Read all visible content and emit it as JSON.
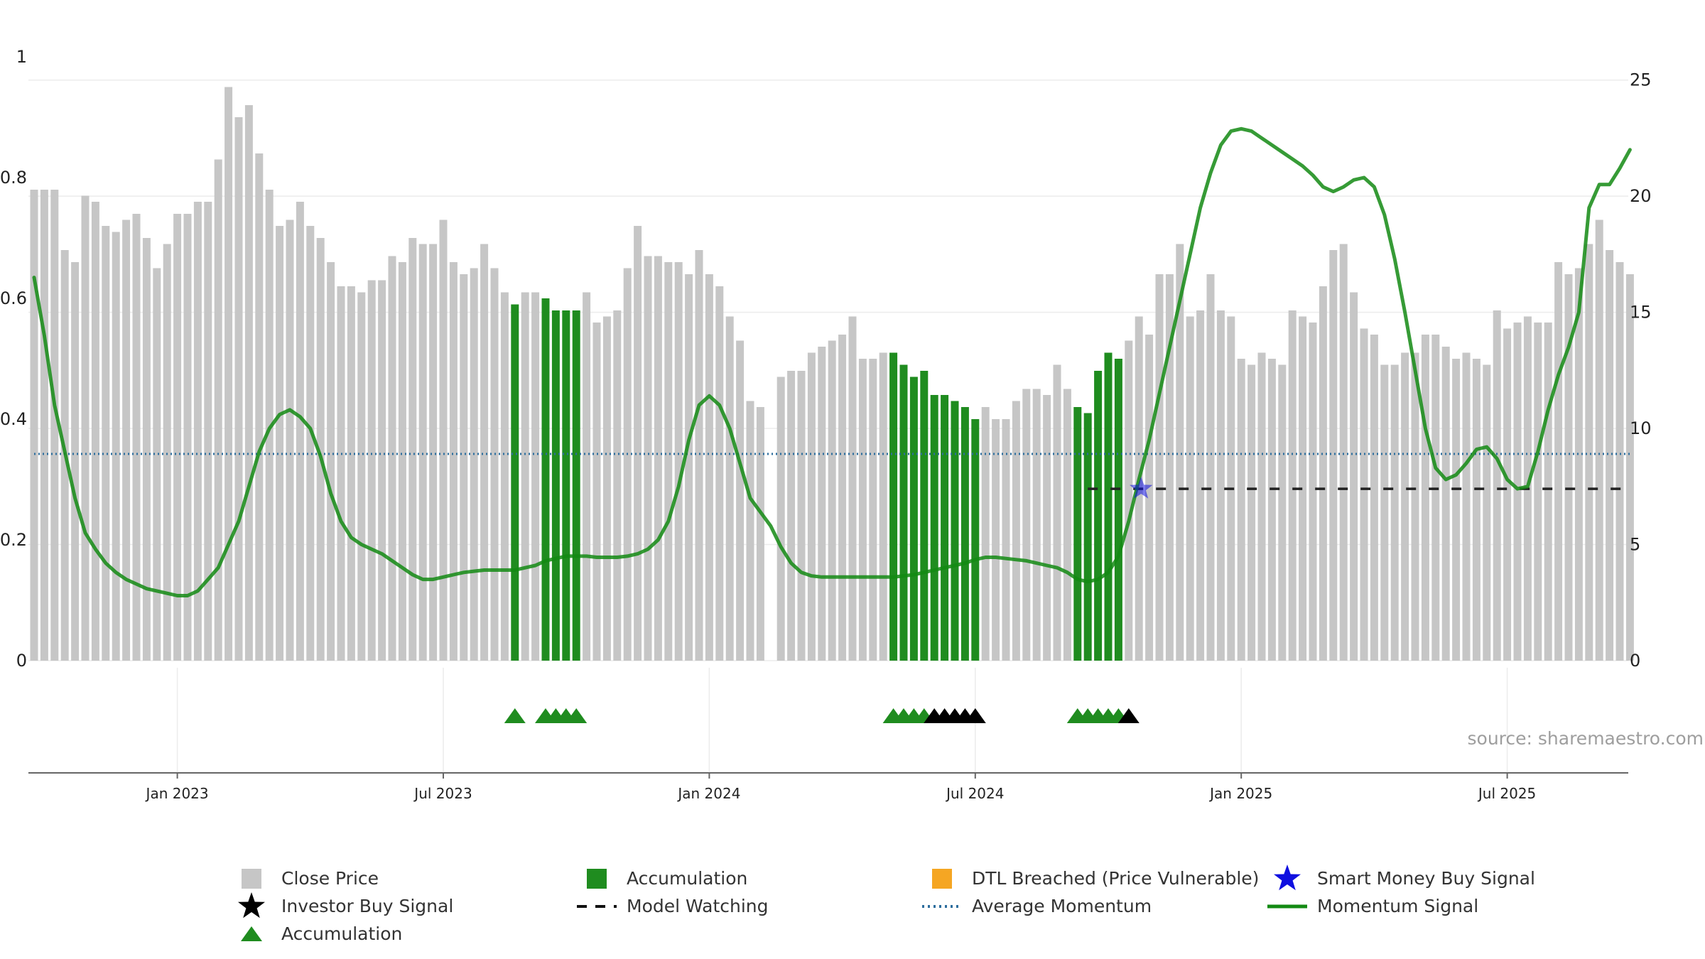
{
  "chart_data": {
    "type": "bar",
    "weeks": 157,
    "x_ticks": [
      "Jan 2023",
      "Jul 2023",
      "Jan 2024",
      "Jul 2024",
      "Jan 2025",
      "Jul 2025"
    ],
    "x_tick_weeks": [
      14,
      40,
      66,
      92,
      118,
      144
    ],
    "left_axis": {
      "ylim": [
        0,
        1
      ],
      "ticks": [
        "0",
        "0.2",
        "0.4",
        "0.6",
        "0.8",
        "1"
      ]
    },
    "right_axis": {
      "ylim": [
        0,
        26
      ],
      "ticks": [
        "0",
        "5",
        "10",
        "15",
        "20",
        "25"
      ]
    },
    "grid": true,
    "close_price": [
      0.78,
      0.78,
      0.78,
      0.68,
      0.66,
      0.77,
      0.76,
      0.72,
      0.71,
      0.73,
      0.74,
      0.7,
      0.65,
      0.69,
      0.74,
      0.74,
      0.76,
      0.76,
      0.83,
      0.95,
      0.9,
      0.92,
      0.84,
      0.78,
      0.72,
      0.73,
      0.76,
      0.72,
      0.7,
      0.66,
      0.62,
      0.62,
      0.61,
      0.63,
      0.63,
      0.67,
      0.66,
      0.7,
      0.69,
      0.69,
      0.73,
      0.66,
      0.64,
      0.65,
      0.69,
      0.65,
      0.61,
      0.59,
      0.61,
      0.61,
      0.6,
      0.58,
      0.58,
      0.58,
      0.61,
      0.56,
      0.57,
      0.58,
      0.65,
      0.72,
      0.67,
      0.67,
      0.66,
      0.66,
      0.64,
      0.68,
      0.64,
      0.62,
      0.57,
      0.53,
      0.43,
      0.42,
      null,
      0.47,
      0.48,
      0.48,
      0.51,
      0.52,
      0.53,
      0.54,
      0.57,
      0.5,
      0.5,
      0.51,
      0.51,
      0.49,
      0.47,
      0.48,
      0.44,
      0.44,
      0.43,
      0.42,
      0.4,
      0.42,
      0.4,
      0.4,
      0.43,
      0.45,
      0.45,
      0.44,
      0.49,
      0.45,
      0.42,
      0.41,
      0.48,
      0.51,
      0.5,
      0.53,
      0.57,
      0.54,
      0.64,
      0.64,
      0.69,
      0.57,
      0.58,
      0.64,
      0.58,
      0.57,
      0.5,
      0.49,
      0.51,
      0.5,
      0.49,
      0.58,
      0.57,
      0.56,
      0.62,
      0.68,
      0.69,
      0.61,
      0.55,
      0.54,
      0.49,
      0.49,
      0.51,
      0.51,
      0.54,
      0.54,
      0.52,
      0.5,
      0.51,
      0.5,
      0.49,
      0.58,
      0.55,
      0.56,
      0.57,
      0.56,
      0.56,
      0.66,
      0.64,
      0.65,
      0.69,
      0.73,
      0.68,
      0.66,
      0.64
    ],
    "accumulation_bar_weeks": [
      47,
      50,
      51,
      52,
      53,
      84,
      85,
      86,
      87,
      88,
      89,
      90,
      91,
      92,
      102,
      103,
      104,
      105,
      106
    ],
    "momentum_signal": [
      16.5,
      14,
      11,
      9,
      7,
      5.5,
      4.8,
      4.2,
      3.8,
      3.5,
      3.3,
      3.1,
      3.0,
      2.9,
      2.8,
      2.8,
      3.0,
      3.5,
      4.0,
      5.0,
      6.0,
      7.5,
      9.0,
      10.0,
      10.6,
      10.8,
      10.5,
      10.0,
      8.8,
      7.2,
      6.0,
      5.3,
      5.0,
      4.8,
      4.6,
      4.3,
      4.0,
      3.7,
      3.5,
      3.5,
      3.6,
      3.7,
      3.8,
      3.85,
      3.9,
      3.9,
      3.9,
      3.9,
      4.0,
      4.1,
      4.3,
      4.4,
      4.5,
      4.5,
      4.5,
      4.45,
      4.45,
      4.45,
      4.5,
      4.6,
      4.8,
      5.2,
      6.0,
      7.5,
      9.5,
      11.0,
      11.4,
      11.0,
      10.0,
      8.5,
      7.0,
      6.4,
      5.8,
      4.9,
      4.2,
      3.8,
      3.65,
      3.6,
      3.6,
      3.6,
      3.6,
      3.6,
      3.6,
      3.6,
      3.6,
      3.65,
      3.7,
      3.8,
      3.9,
      4.0,
      4.1,
      4.2,
      4.35,
      4.45,
      4.45,
      4.4,
      4.35,
      4.3,
      4.2,
      4.1,
      4.0,
      3.8,
      3.5,
      3.4,
      3.5,
      3.8,
      4.5,
      6.0,
      7.8,
      9.5,
      11.5,
      13.5,
      15.5,
      17.5,
      19.5,
      21.0,
      22.2,
      22.8,
      22.9,
      22.8,
      22.5,
      22.2,
      21.9,
      21.6,
      21.3,
      20.9,
      20.4,
      20.2,
      20.4,
      20.7,
      20.8,
      20.4,
      19.2,
      17.3,
      15.0,
      12.5,
      10.0,
      8.3,
      7.8,
      8.0,
      8.5,
      9.1,
      9.2,
      8.7,
      7.8,
      7.4,
      7.5,
      9.0,
      10.8,
      12.3,
      13.5,
      15.0,
      19.5,
      20.5,
      20.5,
      21.2,
      22.0
    ],
    "average_momentum": 8.9,
    "model_watching": {
      "from_week": 103,
      "to_week": 156,
      "value": 7.4
    },
    "smart_money_buy_signal": {
      "week": 108,
      "value": 7.4
    },
    "accumulation_marker_weeks": [
      47,
      50,
      51,
      52,
      53,
      84,
      85,
      86,
      87
    ],
    "investor_buy_marker_weeks": [
      88,
      89,
      90,
      91,
      92,
      107
    ],
    "accumulation_marker_weeks_2": [
      102,
      103,
      104,
      105,
      106
    ],
    "annotation": "source: sharemaestro.com",
    "colors": {
      "close_price": "#c6c6c6",
      "accumulation": "#1f8c1f",
      "dtl": "#f5a623",
      "smart_money": "#1010e0",
      "investor": "#000000",
      "momentum": "#138a13",
      "average": "#2e6e9e"
    },
    "legend": {
      "placement": "bottom",
      "items": [
        {
          "label": "Close Price",
          "symbol": "gray-square-icon"
        },
        {
          "label": "Accumulation",
          "symbol": "green-square-icon"
        },
        {
          "label": "DTL Breached (Price Vulnerable)",
          "symbol": "orange-square-icon"
        },
        {
          "label": "Smart Money Buy Signal",
          "symbol": "blue-star-icon"
        },
        {
          "label": "Investor Buy Signal",
          "symbol": "black-star-icon"
        },
        {
          "label": "Model Watching",
          "symbol": "dashed-line-icon"
        },
        {
          "label": "Average Momentum",
          "symbol": "dotted-line-icon"
        },
        {
          "label": "Momentum Signal",
          "symbol": "green-line-icon"
        },
        {
          "label": "Accumulation",
          "symbol": "green-triangle-icon"
        }
      ]
    }
  }
}
